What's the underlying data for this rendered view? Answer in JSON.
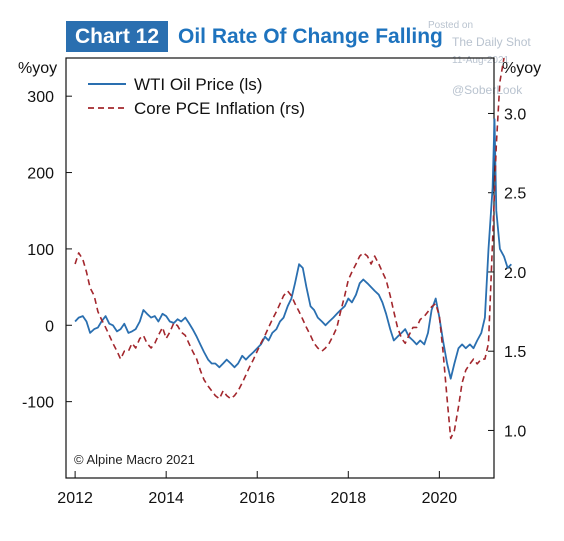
{
  "header": {
    "chart_number": "Chart 12",
    "title": "Oil Rate Of Change Falling"
  },
  "watermark": {
    "posted": "Posted on",
    "source": "The Daily Shot",
    "date": "11-Aug-2021",
    "handle": "@SoberLook"
  },
  "copyright": "© Alpine Macro 2021",
  "colors": {
    "wti": "#2a6fb0",
    "pce": "#a3272d",
    "axis": "#111111",
    "badge": "#2a6fb0",
    "title": "#1e73be"
  },
  "chart_data": {
    "type": "line",
    "title": "Oil Rate Of Change Falling",
    "x_axis": {
      "ticks": [
        2012,
        2014,
        2016,
        2018,
        2020
      ],
      "range": [
        2011.8,
        2021.2
      ]
    },
    "y_left": {
      "unit_label": "%yoy",
      "ticks": [
        300,
        200,
        100,
        0,
        -100
      ],
      "range": [
        -200,
        350
      ]
    },
    "y_right": {
      "unit_label": "%yoy",
      "ticks": [
        "3.0",
        "2.5",
        "2.0",
        "1.5",
        "1.0"
      ],
      "range": [
        0.7,
        3.35
      ]
    },
    "grid": false,
    "legend_position": "top-left",
    "series": [
      {
        "name": "WTI Oil Price (ls)",
        "axis": "left",
        "style": "solid",
        "points": [
          [
            2012.0,
            5
          ],
          [
            2012.08,
            10
          ],
          [
            2012.17,
            12
          ],
          [
            2012.25,
            5
          ],
          [
            2012.33,
            -10
          ],
          [
            2012.42,
            -5
          ],
          [
            2012.5,
            -3
          ],
          [
            2012.58,
            5
          ],
          [
            2012.67,
            12
          ],
          [
            2012.75,
            2
          ],
          [
            2012.83,
            0
          ],
          [
            2012.92,
            -8
          ],
          [
            2013.0,
            -5
          ],
          [
            2013.08,
            2
          ],
          [
            2013.17,
            -10
          ],
          [
            2013.25,
            -8
          ],
          [
            2013.33,
            -5
          ],
          [
            2013.42,
            5
          ],
          [
            2013.5,
            20
          ],
          [
            2013.58,
            15
          ],
          [
            2013.67,
            10
          ],
          [
            2013.75,
            12
          ],
          [
            2013.83,
            5
          ],
          [
            2013.92,
            15
          ],
          [
            2014.0,
            12
          ],
          [
            2014.08,
            5
          ],
          [
            2014.17,
            3
          ],
          [
            2014.25,
            8
          ],
          [
            2014.33,
            5
          ],
          [
            2014.42,
            10
          ],
          [
            2014.5,
            3
          ],
          [
            2014.58,
            -5
          ],
          [
            2014.67,
            -15
          ],
          [
            2014.75,
            -25
          ],
          [
            2014.83,
            -35
          ],
          [
            2014.92,
            -45
          ],
          [
            2015.0,
            -50
          ],
          [
            2015.08,
            -50
          ],
          [
            2015.17,
            -55
          ],
          [
            2015.25,
            -50
          ],
          [
            2015.33,
            -45
          ],
          [
            2015.42,
            -50
          ],
          [
            2015.5,
            -55
          ],
          [
            2015.58,
            -50
          ],
          [
            2015.67,
            -40
          ],
          [
            2015.75,
            -45
          ],
          [
            2015.83,
            -40
          ],
          [
            2015.92,
            -35
          ],
          [
            2016.0,
            -30
          ],
          [
            2016.08,
            -25
          ],
          [
            2016.17,
            -15
          ],
          [
            2016.25,
            -20
          ],
          [
            2016.33,
            -10
          ],
          [
            2016.42,
            -5
          ],
          [
            2016.5,
            5
          ],
          [
            2016.58,
            10
          ],
          [
            2016.67,
            25
          ],
          [
            2016.75,
            35
          ],
          [
            2016.83,
            55
          ],
          [
            2016.92,
            80
          ],
          [
            2017.0,
            75
          ],
          [
            2017.08,
            50
          ],
          [
            2017.17,
            25
          ],
          [
            2017.25,
            20
          ],
          [
            2017.33,
            10
          ],
          [
            2017.42,
            5
          ],
          [
            2017.5,
            0
          ],
          [
            2017.58,
            5
          ],
          [
            2017.67,
            10
          ],
          [
            2017.75,
            15
          ],
          [
            2017.83,
            20
          ],
          [
            2017.92,
            25
          ],
          [
            2018.0,
            35
          ],
          [
            2018.08,
            30
          ],
          [
            2018.17,
            40
          ],
          [
            2018.25,
            55
          ],
          [
            2018.33,
            60
          ],
          [
            2018.42,
            55
          ],
          [
            2018.5,
            50
          ],
          [
            2018.58,
            45
          ],
          [
            2018.67,
            40
          ],
          [
            2018.75,
            30
          ],
          [
            2018.83,
            15
          ],
          [
            2018.92,
            -5
          ],
          [
            2019.0,
            -20
          ],
          [
            2019.08,
            -15
          ],
          [
            2019.17,
            -10
          ],
          [
            2019.25,
            -5
          ],
          [
            2019.33,
            -15
          ],
          [
            2019.42,
            -20
          ],
          [
            2019.5,
            -25
          ],
          [
            2019.58,
            -20
          ],
          [
            2019.67,
            -25
          ],
          [
            2019.75,
            -10
          ],
          [
            2019.83,
            20
          ],
          [
            2019.92,
            35
          ],
          [
            2020.0,
            10
          ],
          [
            2020.08,
            -20
          ],
          [
            2020.17,
            -50
          ],
          [
            2020.25,
            -70
          ],
          [
            2020.33,
            -50
          ],
          [
            2020.42,
            -30
          ],
          [
            2020.5,
            -25
          ],
          [
            2020.58,
            -30
          ],
          [
            2020.67,
            -25
          ],
          [
            2020.75,
            -30
          ],
          [
            2020.83,
            -20
          ],
          [
            2020.92,
            -10
          ],
          [
            2021.0,
            10
          ],
          [
            2021.08,
            100
          ],
          [
            2021.17,
            180
          ],
          [
            2021.21,
            270
          ],
          [
            2021.25,
            150
          ],
          [
            2021.33,
            100
          ],
          [
            2021.42,
            90
          ],
          [
            2021.5,
            75
          ],
          [
            2021.58,
            80
          ]
        ]
      },
      {
        "name": "Core PCE Inflation (rs)",
        "axis": "right",
        "style": "dashed",
        "points": [
          [
            2012.0,
            2.05
          ],
          [
            2012.08,
            2.12
          ],
          [
            2012.17,
            2.08
          ],
          [
            2012.25,
            2.0
          ],
          [
            2012.33,
            1.9
          ],
          [
            2012.42,
            1.85
          ],
          [
            2012.5,
            1.75
          ],
          [
            2012.58,
            1.7
          ],
          [
            2012.67,
            1.65
          ],
          [
            2012.75,
            1.6
          ],
          [
            2012.83,
            1.55
          ],
          [
            2012.92,
            1.5
          ],
          [
            2013.0,
            1.45
          ],
          [
            2013.08,
            1.5
          ],
          [
            2013.17,
            1.5
          ],
          [
            2013.25,
            1.55
          ],
          [
            2013.33,
            1.52
          ],
          [
            2013.42,
            1.58
          ],
          [
            2013.5,
            1.6
          ],
          [
            2013.58,
            1.55
          ],
          [
            2013.67,
            1.52
          ],
          [
            2013.75,
            1.55
          ],
          [
            2013.83,
            1.6
          ],
          [
            2013.92,
            1.65
          ],
          [
            2014.0,
            1.58
          ],
          [
            2014.08,
            1.62
          ],
          [
            2014.17,
            1.68
          ],
          [
            2014.25,
            1.66
          ],
          [
            2014.33,
            1.62
          ],
          [
            2014.42,
            1.6
          ],
          [
            2014.5,
            1.55
          ],
          [
            2014.58,
            1.5
          ],
          [
            2014.67,
            1.45
          ],
          [
            2014.75,
            1.38
          ],
          [
            2014.83,
            1.32
          ],
          [
            2014.92,
            1.28
          ],
          [
            2015.0,
            1.25
          ],
          [
            2015.08,
            1.22
          ],
          [
            2015.17,
            1.2
          ],
          [
            2015.25,
            1.25
          ],
          [
            2015.33,
            1.22
          ],
          [
            2015.42,
            1.2
          ],
          [
            2015.5,
            1.22
          ],
          [
            2015.58,
            1.25
          ],
          [
            2015.67,
            1.3
          ],
          [
            2015.75,
            1.35
          ],
          [
            2015.83,
            1.4
          ],
          [
            2015.92,
            1.45
          ],
          [
            2016.0,
            1.5
          ],
          [
            2016.08,
            1.55
          ],
          [
            2016.17,
            1.6
          ],
          [
            2016.25,
            1.65
          ],
          [
            2016.33,
            1.7
          ],
          [
            2016.42,
            1.75
          ],
          [
            2016.5,
            1.8
          ],
          [
            2016.58,
            1.85
          ],
          [
            2016.67,
            1.88
          ],
          [
            2016.75,
            1.85
          ],
          [
            2016.83,
            1.8
          ],
          [
            2016.92,
            1.75
          ],
          [
            2017.0,
            1.7
          ],
          [
            2017.08,
            1.65
          ],
          [
            2017.17,
            1.6
          ],
          [
            2017.25,
            1.55
          ],
          [
            2017.33,
            1.52
          ],
          [
            2017.42,
            1.5
          ],
          [
            2017.5,
            1.52
          ],
          [
            2017.58,
            1.55
          ],
          [
            2017.67,
            1.6
          ],
          [
            2017.75,
            1.65
          ],
          [
            2017.83,
            1.75
          ],
          [
            2017.92,
            1.85
          ],
          [
            2018.0,
            1.95
          ],
          [
            2018.08,
            2.0
          ],
          [
            2018.17,
            2.05
          ],
          [
            2018.25,
            2.1
          ],
          [
            2018.33,
            2.12
          ],
          [
            2018.42,
            2.1
          ],
          [
            2018.5,
            2.05
          ],
          [
            2018.58,
            2.1
          ],
          [
            2018.67,
            2.05
          ],
          [
            2018.75,
            2.0
          ],
          [
            2018.83,
            1.95
          ],
          [
            2018.92,
            1.85
          ],
          [
            2019.0,
            1.75
          ],
          [
            2019.08,
            1.65
          ],
          [
            2019.17,
            1.58
          ],
          [
            2019.25,
            1.55
          ],
          [
            2019.33,
            1.6
          ],
          [
            2019.42,
            1.65
          ],
          [
            2019.5,
            1.65
          ],
          [
            2019.58,
            1.7
          ],
          [
            2019.67,
            1.72
          ],
          [
            2019.75,
            1.75
          ],
          [
            2019.83,
            1.78
          ],
          [
            2019.92,
            1.8
          ],
          [
            2020.0,
            1.72
          ],
          [
            2020.08,
            1.5
          ],
          [
            2020.17,
            1.2
          ],
          [
            2020.25,
            0.95
          ],
          [
            2020.33,
            1.0
          ],
          [
            2020.42,
            1.15
          ],
          [
            2020.5,
            1.3
          ],
          [
            2020.58,
            1.38
          ],
          [
            2020.67,
            1.42
          ],
          [
            2020.75,
            1.45
          ],
          [
            2020.83,
            1.42
          ],
          [
            2020.92,
            1.45
          ],
          [
            2021.0,
            1.45
          ],
          [
            2021.08,
            1.55
          ],
          [
            2021.17,
            2.2
          ],
          [
            2021.25,
            2.8
          ],
          [
            2021.33,
            3.2
          ],
          [
            2021.42,
            3.35
          ]
        ]
      }
    ]
  }
}
